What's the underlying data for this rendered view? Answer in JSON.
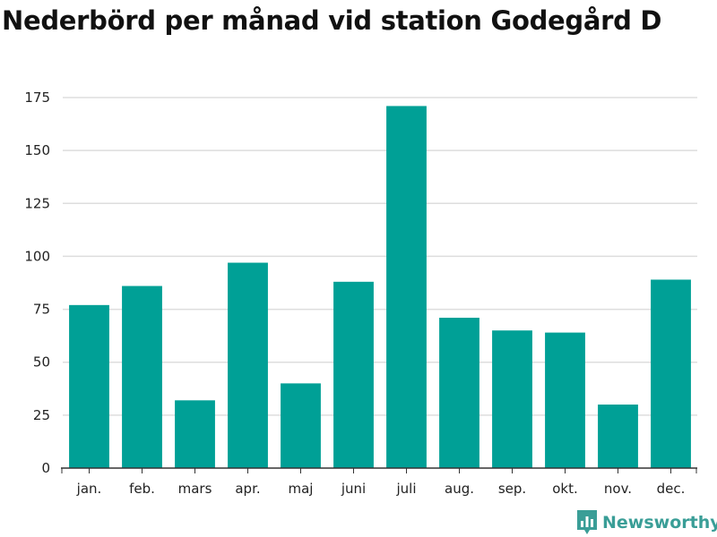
{
  "title": "Nederbörd per månad vid station Godegård D",
  "brand": {
    "name": "Newsworthy",
    "icon": "bar-chart-bubble-icon",
    "color": "#3a9e97"
  },
  "colors": {
    "bar": "#00a096",
    "grid": "#dddddd",
    "axis": "#333333"
  },
  "chart_data": {
    "type": "bar",
    "title": "Nederbörd per månad vid station Godegård D",
    "xlabel": "",
    "ylabel": "",
    "categories": [
      "jan.",
      "feb.",
      "mars",
      "apr.",
      "maj",
      "juni",
      "juli",
      "aug.",
      "sep.",
      "okt.",
      "nov.",
      "dec."
    ],
    "values": [
      77,
      86,
      32,
      97,
      40,
      88,
      171,
      71,
      65,
      64,
      30,
      89
    ],
    "ylim": [
      0,
      175
    ],
    "yticks": [
      0,
      25,
      50,
      75,
      100,
      125,
      150,
      175
    ],
    "grid": true,
    "legend": "none"
  }
}
